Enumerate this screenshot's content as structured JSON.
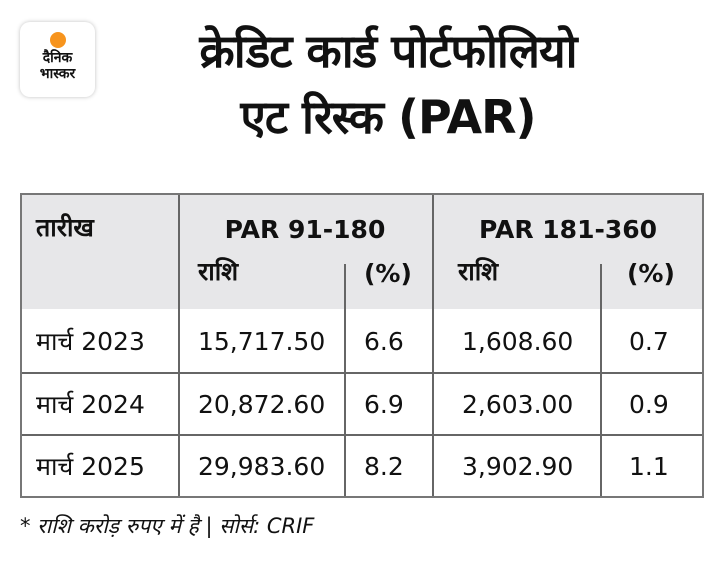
{
  "logo": {
    "line1": "दैनिक",
    "line2": "भास्कर",
    "accent": "#f7941d"
  },
  "title": {
    "line1": "क्रेडिट कार्ड पोर्टफोलियो",
    "line2": "एट रिस्क (PAR)"
  },
  "table": {
    "col_date": "तारीख",
    "group1": "PAR 91-180",
    "group2": "PAR 181-360",
    "amount": "राशि",
    "pct": "(%)",
    "rows": [
      {
        "date": "मार्च 2023",
        "a1": "15,717.50",
        "p1": "6.6",
        "a2": "1,608.60",
        "p2": "0.7"
      },
      {
        "date": "मार्च 2024",
        "a1": "20,872.60",
        "p1": "6.9",
        "a2": "2,603.00",
        "p2": "0.9"
      },
      {
        "date": "मार्च 2025",
        "a1": "29,983.60",
        "p1": "8.2",
        "a2": "3,902.90",
        "p2": "1.1"
      }
    ]
  },
  "footnote": "* राशि करोड़ रुपए में है | सोर्स: CRIF"
}
